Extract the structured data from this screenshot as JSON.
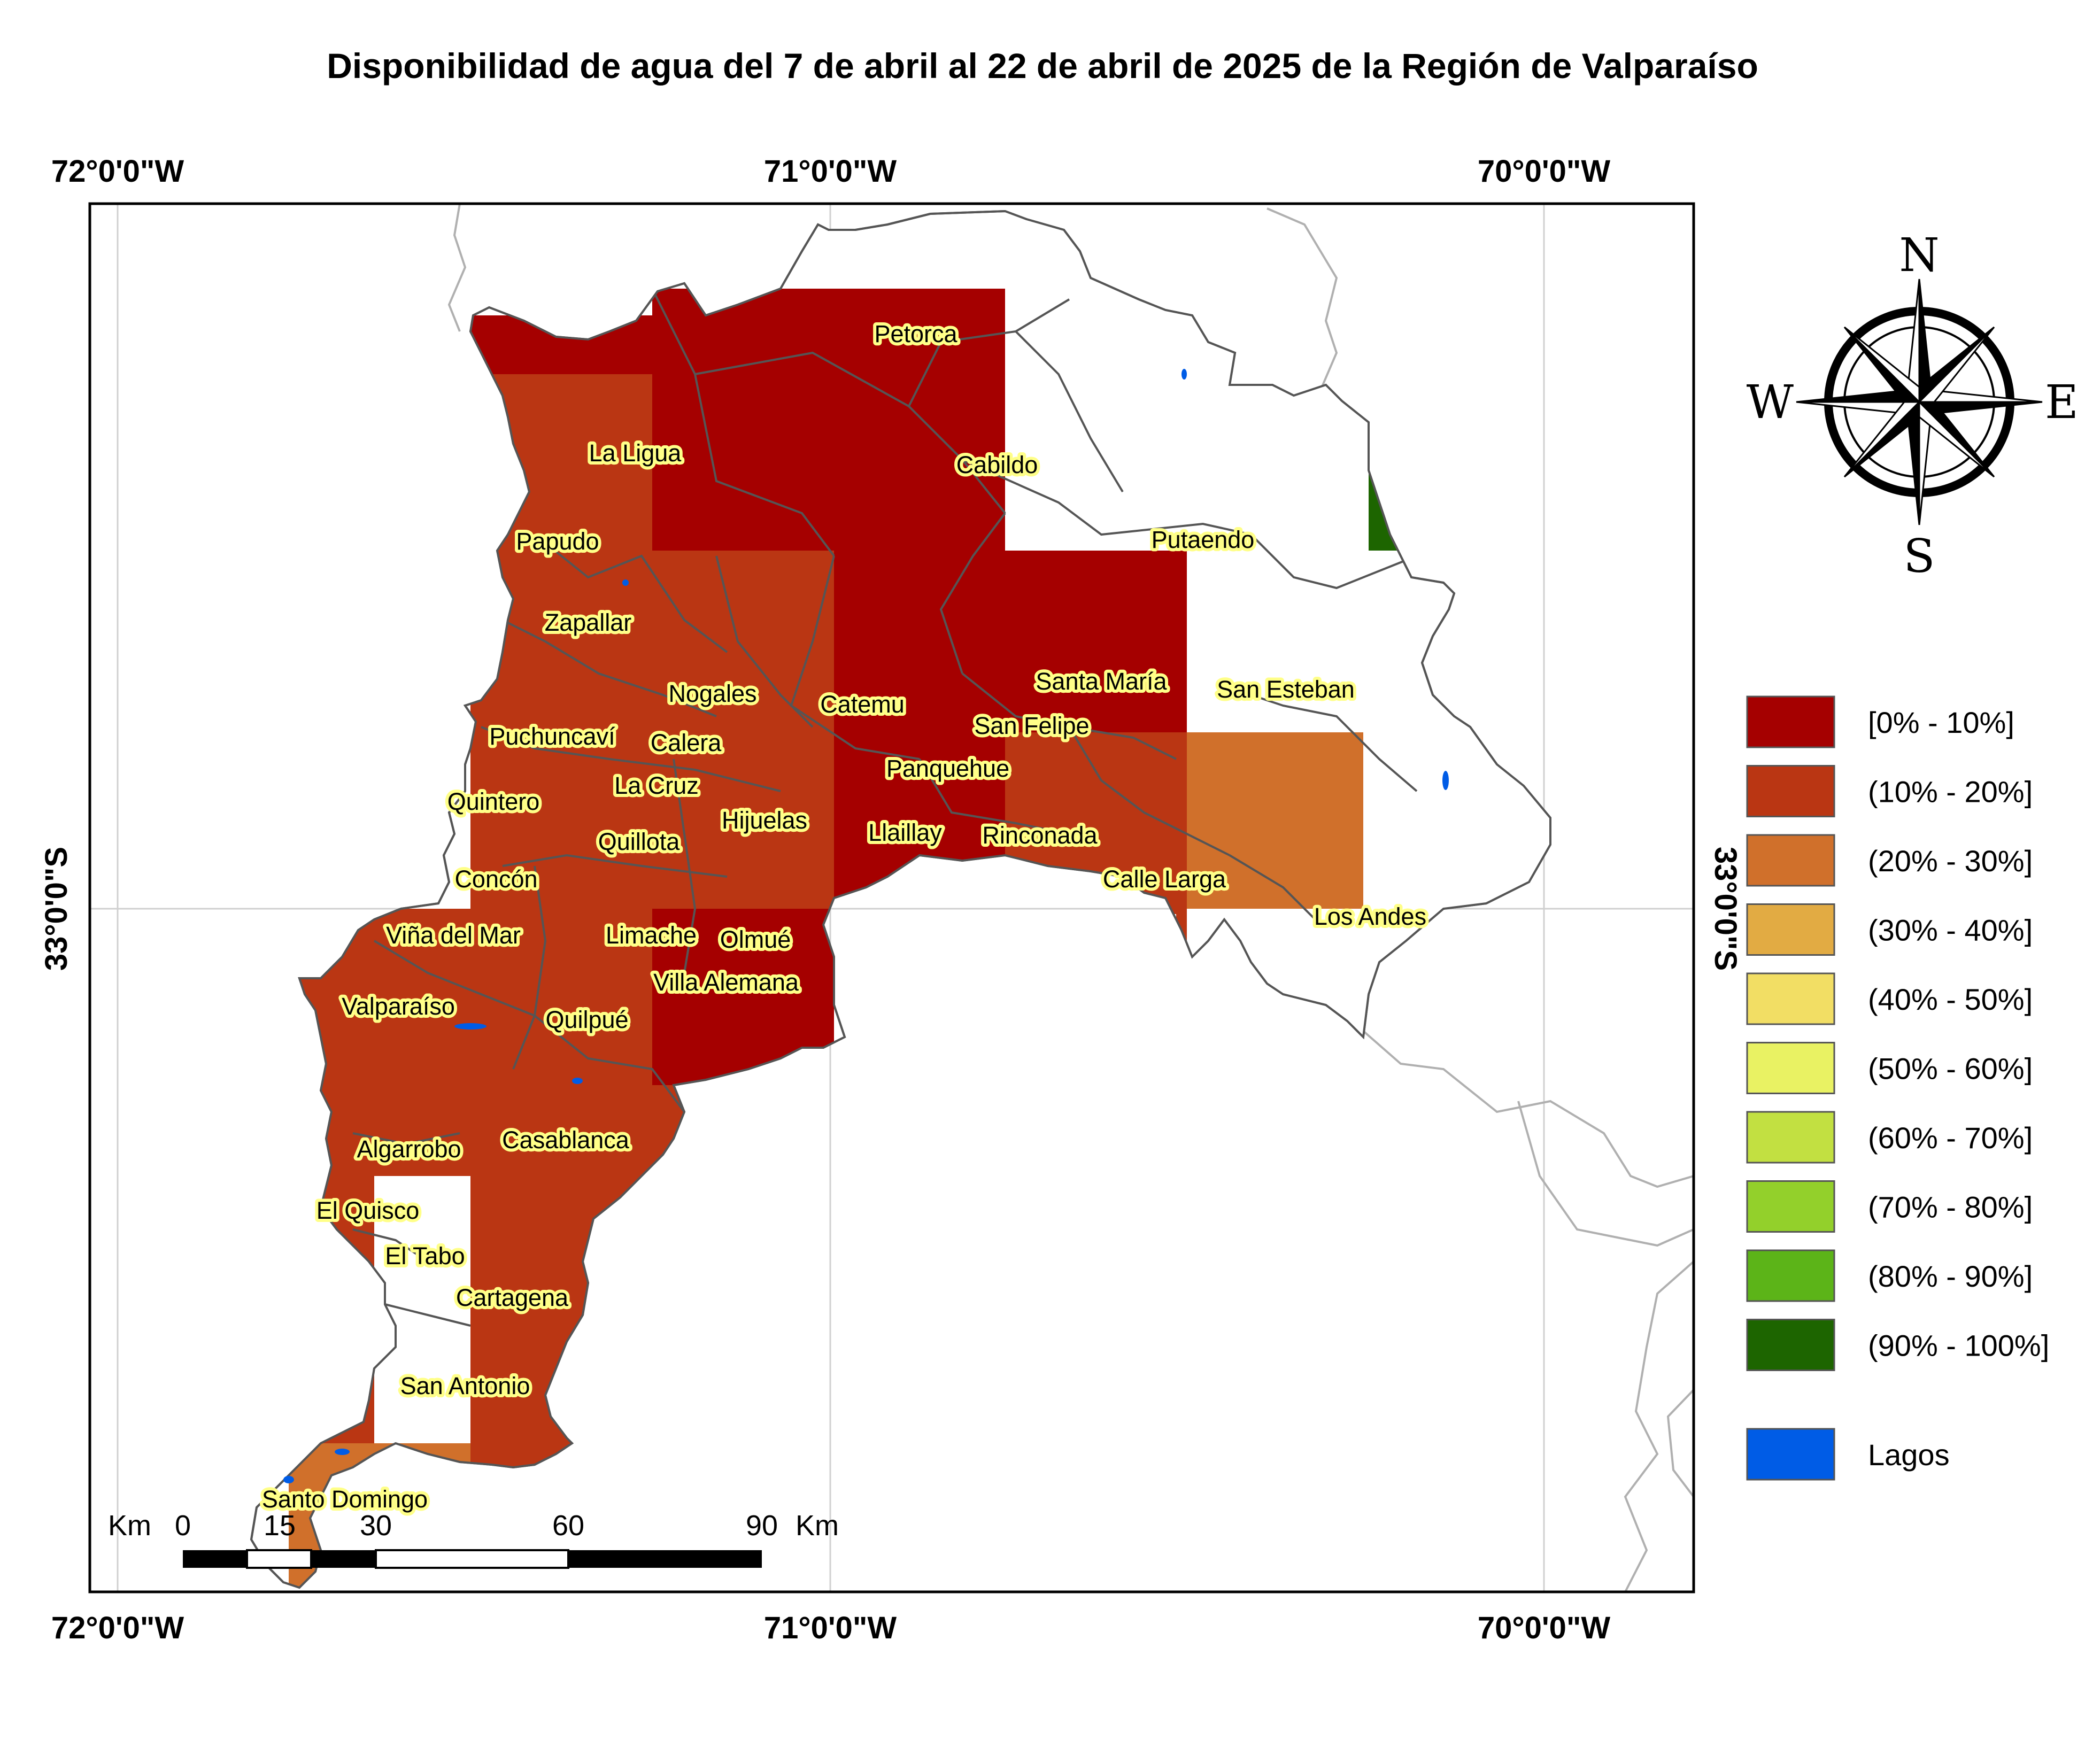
{
  "title": "Disponibilidad de agua del 7 de abril al 22 de abril de 2025 de la Región de Valparaíso",
  "coordinates": {
    "top": [
      "72°0'0\"W",
      "71°0'0\"W",
      "70°0'0\"W"
    ],
    "bottom": [
      "72°0'0\"W",
      "71°0'0\"W",
      "70°0'0\"W"
    ],
    "left": "33°0'0\"S",
    "right": "33°0'0\"S"
  },
  "colors": {
    "c0_10": "#a50000",
    "c10_20": "#ba3613",
    "c20_30": "#d0702b",
    "c30_40": "#e2ab43",
    "c40_50": "#f2de64",
    "c50_60": "#e9f263",
    "c60_70": "#c2e041",
    "c70_80": "#93d02b",
    "c80_90": "#5cb418",
    "c90_100": "#1d6500",
    "lakes": "#005ce6",
    "label_halo": "#ffff88"
  },
  "places": [
    "Petorca",
    "La Ligua",
    "Cabildo",
    "Papudo",
    "Putaendo",
    "Zapallar",
    "Nogales",
    "Catemu",
    "Santa María",
    "San Esteban",
    "Puchuncaví",
    "Calera",
    "San Felipe",
    "Panquehue",
    "La Cruz",
    "Quintero",
    "Hijuelas",
    "Llaillay",
    "Rinconada",
    "Quillota",
    "Concón",
    "Calle Larga",
    "Los Andes",
    "Viña del Mar",
    "Limache",
    "Olmué",
    "Villa Alemana",
    "Valparaíso",
    "Quilpué",
    "Algarrobo",
    "Casablanca",
    "El Quisco",
    "El Tabo",
    "Cartagena",
    "San Antonio",
    "Santo Domingo"
  ],
  "legend": [
    {
      "label": "[0% - 10%]",
      "color": "#a50000"
    },
    {
      "label": "(10% - 20%]",
      "color": "#ba3613"
    },
    {
      "label": "(20% - 30%]",
      "color": "#d0702b"
    },
    {
      "label": "(30% - 40%]",
      "color": "#e2ab43"
    },
    {
      "label": "(40% - 50%]",
      "color": "#f2de64"
    },
    {
      "label": "(50% - 60%]",
      "color": "#e9f263"
    },
    {
      "label": "(60% - 70%]",
      "color": "#c2e041"
    },
    {
      "label": "(70% - 80%]",
      "color": "#93d02b"
    },
    {
      "label": "(80% - 90%]",
      "color": "#5cb418"
    },
    {
      "label": "(90% - 100%]",
      "color": "#1d6500"
    }
  ],
  "legend_lakes": {
    "label": "Lagos",
    "color": "#005ce6"
  },
  "compass": {
    "n": "N",
    "s": "S",
    "e": "E",
    "w": "W"
  },
  "scale": {
    "unit_left": "Km",
    "unit_right": "Km",
    "ticks": [
      "0",
      "15",
      "30",
      "60",
      "90"
    ]
  }
}
